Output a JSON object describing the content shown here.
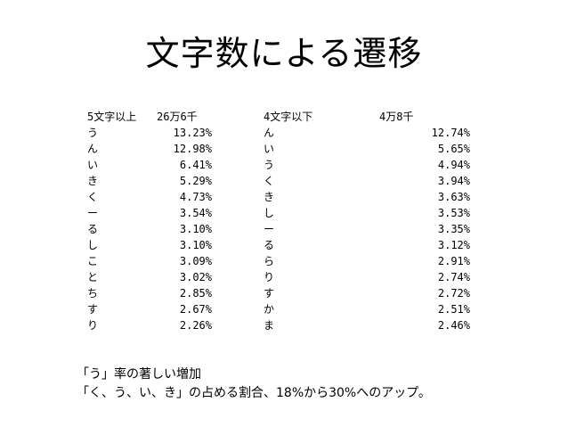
{
  "title": "文字数による遷移",
  "table": {
    "header": {
      "left_label": "5文字以上",
      "left_count": "26万6千",
      "right_label": "4文字以下",
      "right_count": "4万8千"
    },
    "rows": [
      {
        "l_char": "う",
        "l_pct": "13.23%",
        "r_char": "ん",
        "r_pct": "12.74%"
      },
      {
        "l_char": "ん",
        "l_pct": "12.98%",
        "r_char": "い",
        "r_pct": "5.65%"
      },
      {
        "l_char": "い",
        "l_pct": "6.41%",
        "r_char": "う",
        "r_pct": "4.94%"
      },
      {
        "l_char": "き",
        "l_pct": "5.29%",
        "r_char": "く",
        "r_pct": "3.94%"
      },
      {
        "l_char": "く",
        "l_pct": "4.73%",
        "r_char": "き",
        "r_pct": "3.63%"
      },
      {
        "l_char": "ー",
        "l_pct": "3.54%",
        "r_char": "し",
        "r_pct": "3.53%"
      },
      {
        "l_char": "る",
        "l_pct": "3.10%",
        "r_char": "ー",
        "r_pct": "3.35%"
      },
      {
        "l_char": "し",
        "l_pct": "3.10%",
        "r_char": "る",
        "r_pct": "3.12%"
      },
      {
        "l_char": "こ",
        "l_pct": "3.09%",
        "r_char": "ら",
        "r_pct": "2.91%"
      },
      {
        "l_char": "と",
        "l_pct": "3.02%",
        "r_char": "り",
        "r_pct": "2.74%"
      },
      {
        "l_char": "ち",
        "l_pct": "2.85%",
        "r_char": "す",
        "r_pct": "2.72%"
      },
      {
        "l_char": "す",
        "l_pct": "2.67%",
        "r_char": "か",
        "r_pct": "2.51%"
      },
      {
        "l_char": "り",
        "l_pct": "2.26%",
        "r_char": "ま",
        "r_pct": "2.46%"
      }
    ]
  },
  "notes": [
    "「う」率の著しい増加",
    "「く、う、い、き」の占める割合、18%から30%へのアップ。"
  ]
}
